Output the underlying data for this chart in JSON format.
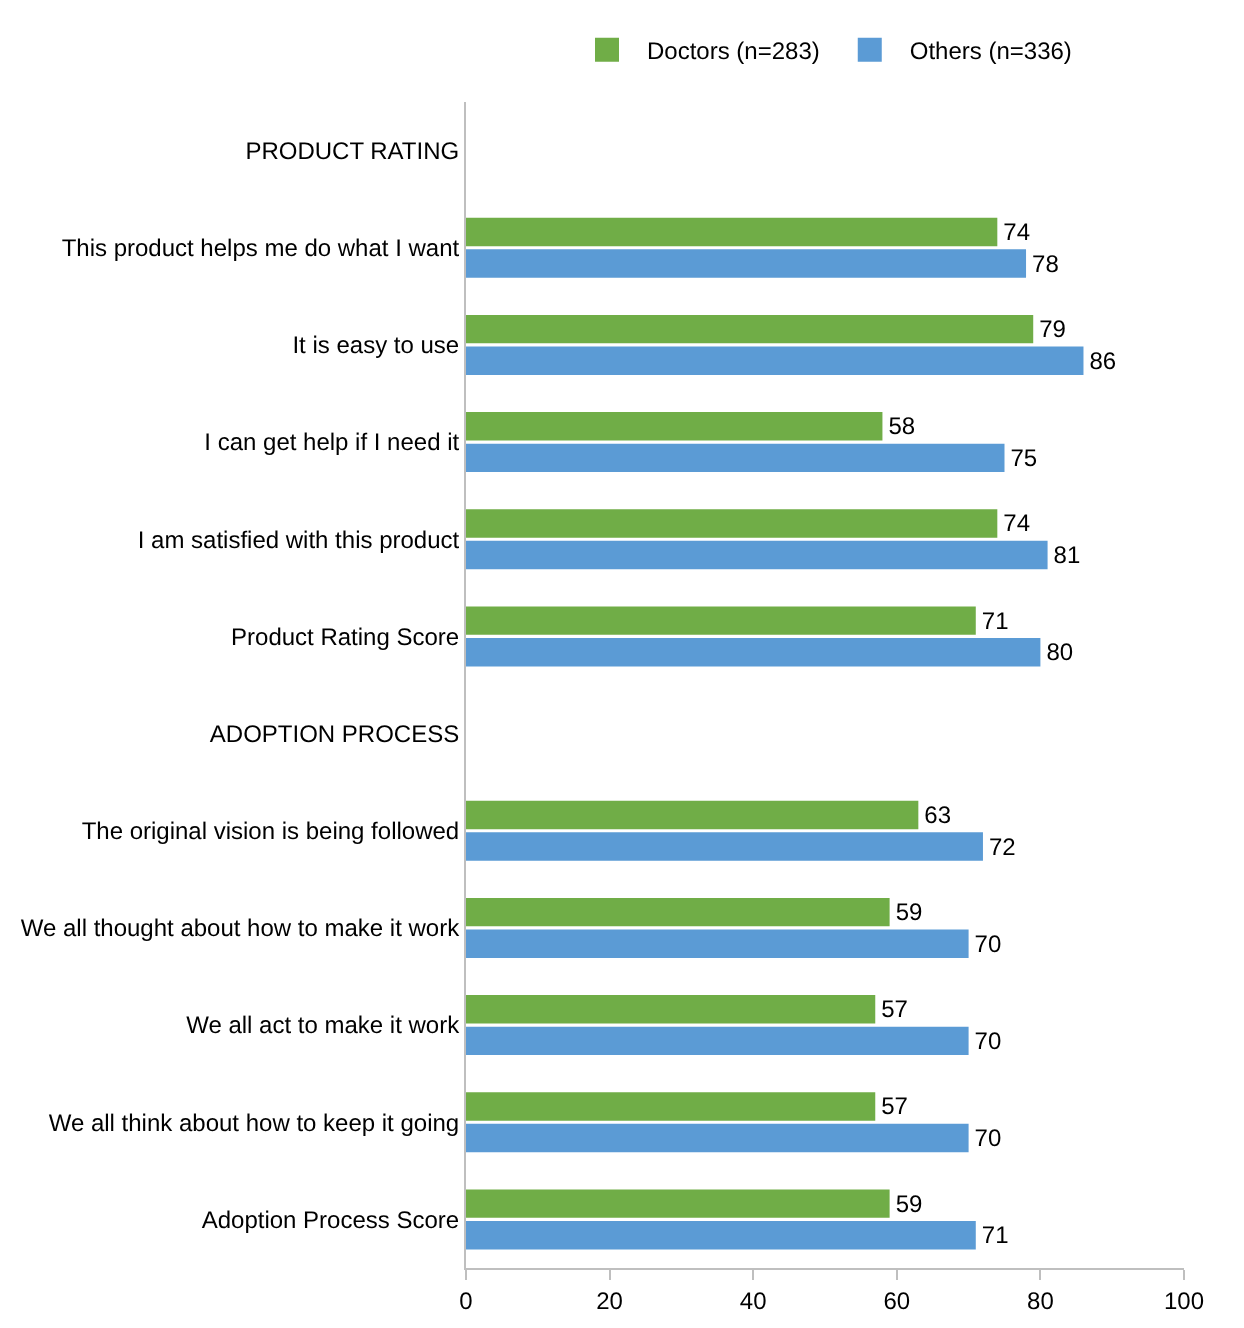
{
  "chart_data": {
    "type": "bar",
    "orientation": "horizontal",
    "categories": [
      "PRODUCT RATING",
      "This product helps me do what I want",
      "It is easy to use",
      "I can get help if I need it",
      "I am satisfied with this product",
      "Product Rating Score",
      "ADOPTION PROCESS",
      "The original vision is being followed",
      "We all thought about how to make it work",
      "We all act to make it work",
      "We all think about how to keep it going",
      "Adoption Process Score"
    ],
    "series": [
      {
        "name": "Doctors (n=283)",
        "color": "#70ad47",
        "values": [
          null,
          74,
          79,
          58,
          74,
          71,
          null,
          63,
          59,
          57,
          57,
          59
        ]
      },
      {
        "name": "Others (n=336)",
        "color": "#5b9bd5",
        "values": [
          null,
          78,
          86,
          75,
          81,
          80,
          null,
          72,
          70,
          70,
          70,
          71
        ]
      }
    ],
    "xlim": [
      0,
      100
    ],
    "xticks": [
      0,
      20,
      40,
      60,
      80,
      100
    ],
    "grid": false,
    "legend": "top",
    "data_labels": true
  }
}
